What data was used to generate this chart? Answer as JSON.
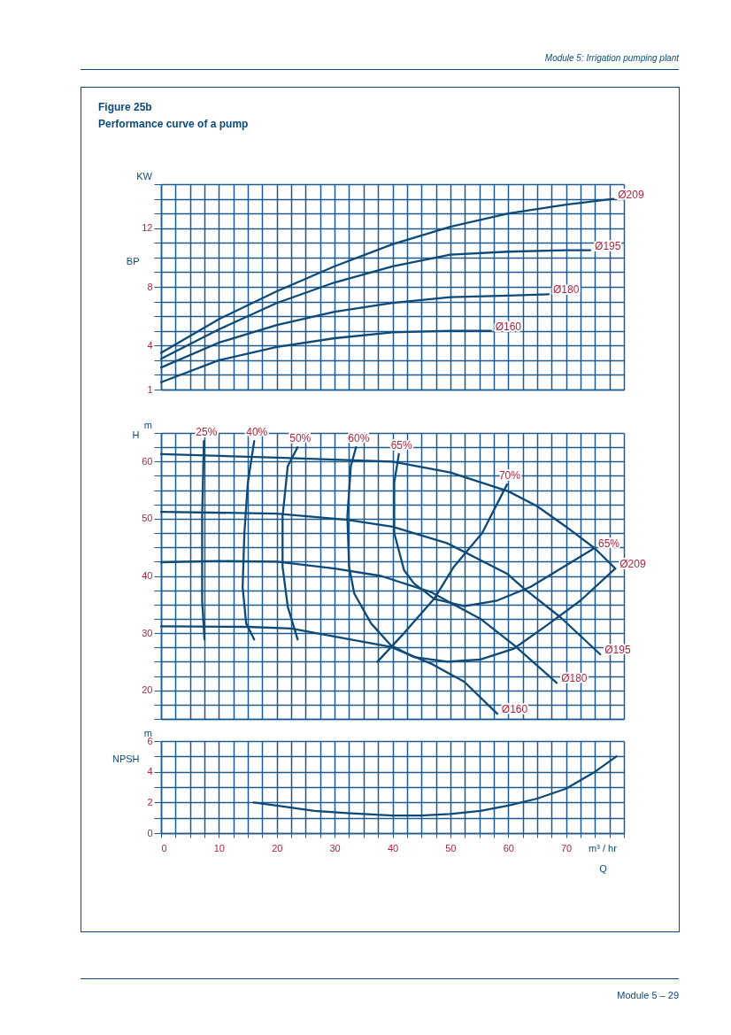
{
  "chart_data": [
    {
      "type": "line",
      "title": "Figure 25b",
      "subtitle": "Performance curve of a pump",
      "ylabel": "BP",
      "annotations": [
        "KW",
        "Module 5: Irrigation pumping plant",
        "Module 5 – 29"
      ],
      "xlim": [
        0,
        80
      ],
      "ylim": [
        1,
        15
      ],
      "grid": true,
      "tick_labels": "y",
      "xticks": [
        0,
        {
          "value": 2.5,
          "label": null
        },
        {
          "value": 5,
          "label": null
        },
        {
          "value": 7.5,
          "label": null
        },
        10,
        {
          "value": 12.5,
          "label": null
        },
        {
          "value": 15,
          "label": null
        },
        {
          "value": 17.5,
          "label": null
        },
        20,
        {
          "value": 22.5,
          "label": null
        },
        {
          "value": 25,
          "label": null
        },
        {
          "value": 27.5,
          "label": null
        },
        30,
        {
          "value": 32.5,
          "label": null
        },
        {
          "value": 35,
          "label": null
        },
        {
          "value": 37.5,
          "label": null
        },
        40,
        {
          "value": 42.5,
          "label": null
        },
        {
          "value": 45,
          "label": null
        },
        {
          "value": 47.5,
          "label": null
        },
        50,
        {
          "value": 52.5,
          "label": null
        },
        {
          "value": 55,
          "label": null
        },
        {
          "value": 57.5,
          "label": null
        },
        60,
        {
          "value": 62.5,
          "label": null
        },
        {
          "value": 65,
          "label": null
        },
        {
          "value": 67.5,
          "label": null
        },
        70,
        {
          "value": 72.5,
          "label": null
        },
        {
          "value": 75,
          "label": null
        },
        {
          "value": 77.5,
          "label": null
        },
        {
          "value": 80,
          "label": null
        }
      ],
      "yticks": [
        1,
        {
          "value": 2,
          "label": null
        },
        {
          "value": 3,
          "label": null
        },
        4,
        {
          "value": 5,
          "label": null
        },
        {
          "value": 6,
          "label": null
        },
        {
          "value": 7,
          "label": null
        },
        8,
        {
          "value": 9,
          "label": null
        },
        {
          "value": 10,
          "label": null
        },
        {
          "value": 11,
          "label": null
        },
        12,
        {
          "value": 13,
          "label": null
        },
        {
          "value": 14,
          "label": null
        },
        {
          "value": 15,
          "label": null
        }
      ],
      "series": [
        {
          "name": "Ø209",
          "color": "#0d4a78",
          "x": [
            0,
            10,
            20,
            30,
            40,
            50,
            60,
            70,
            78.2
          ],
          "values": [
            3.5,
            5.8,
            7.7,
            9.4,
            10.9,
            12.1,
            13.0,
            13.6,
            14.0
          ]
        },
        {
          "name": "Ø195",
          "color": "#0d4a78",
          "x": [
            0,
            10,
            20,
            30,
            40,
            50,
            60,
            70,
            74.2
          ],
          "values": [
            3.1,
            5.1,
            6.9,
            8.3,
            9.4,
            10.2,
            10.4,
            10.5,
            10.5
          ]
        },
        {
          "name": "Ø180",
          "color": "#0d4a78",
          "x": [
            0,
            10,
            20,
            30,
            40,
            50,
            60,
            67
          ],
          "values": [
            2.5,
            4.2,
            5.4,
            6.3,
            6.9,
            7.3,
            7.4,
            7.5
          ]
        },
        {
          "name": "Ø160",
          "color": "#0d4a78",
          "x": [
            0,
            10,
            20,
            30,
            40,
            50,
            57
          ],
          "values": [
            1.5,
            3.0,
            3.9,
            4.5,
            4.9,
            5.0,
            5.0
          ]
        }
      ]
    },
    {
      "type": "line",
      "ylabel": "H",
      "annotations": [
        "m",
        {
          "text": "65%",
          "x": 74.8,
          "y": 44.8
        }
      ],
      "xlim": [
        0,
        80
      ],
      "ylim": [
        15,
        65
      ],
      "grid": true,
      "tick_labels": "y",
      "xticks": [
        0,
        {
          "value": 2.5,
          "label": null
        },
        {
          "value": 5,
          "label": null
        },
        {
          "value": 7.5,
          "label": null
        },
        10,
        {
          "value": 12.5,
          "label": null
        },
        {
          "value": 15,
          "label": null
        },
        {
          "value": 17.5,
          "label": null
        },
        20,
        {
          "value": 22.5,
          "label": null
        },
        {
          "value": 25,
          "label": null
        },
        {
          "value": 27.5,
          "label": null
        },
        30,
        {
          "value": 32.5,
          "label": null
        },
        {
          "value": 35,
          "label": null
        },
        {
          "value": 37.5,
          "label": null
        },
        40,
        {
          "value": 42.5,
          "label": null
        },
        {
          "value": 45,
          "label": null
        },
        {
          "value": 47.5,
          "label": null
        },
        50,
        {
          "value": 52.5,
          "label": null
        },
        {
          "value": 55,
          "label": null
        },
        {
          "value": 57.5,
          "label": null
        },
        60,
        {
          "value": 62.5,
          "label": null
        },
        {
          "value": 65,
          "label": null
        },
        {
          "value": 67.5,
          "label": null
        },
        70,
        {
          "value": 72.5,
          "label": null
        },
        {
          "value": 75,
          "label": null
        },
        {
          "value": 77.5,
          "label": null
        },
        {
          "value": 80,
          "label": null
        }
      ],
      "yticks": [
        {
          "value": 15,
          "label": null
        },
        {
          "value": 17.5,
          "label": null
        },
        20,
        {
          "value": 22.5,
          "label": null
        },
        {
          "value": 25,
          "label": null
        },
        {
          "value": 27.5,
          "label": null
        },
        30,
        {
          "value": 32.5,
          "label": null
        },
        {
          "value": 35,
          "label": null
        },
        {
          "value": 37.5,
          "label": null
        },
        40,
        {
          "value": 42.5,
          "label": null
        },
        {
          "value": 45,
          "label": null
        },
        {
          "value": 47.5,
          "label": null
        },
        50,
        {
          "value": 52.5,
          "label": null
        },
        {
          "value": 55,
          "label": null
        },
        {
          "value": 57.5,
          "label": null
        },
        60,
        {
          "value": 62.5,
          "label": null
        },
        {
          "value": 65,
          "label": null
        }
      ],
      "series": [
        {
          "name": "25%",
          "color": "#0d4a78",
          "x": [
            7.5,
            7.1,
            7.1,
            7.4
          ],
          "values": [
            28.9,
            35.7,
            50.4,
            63.6
          ]
        },
        {
          "name": "40%",
          "color": "#0d4a78",
          "x": [
            16.1,
            14.7,
            14.1,
            14.4,
            15,
            16.1
          ],
          "values": [
            28.9,
            31.7,
            38.1,
            47.5,
            56.3,
            63.6
          ]
        },
        {
          "name": "50%",
          "color": "#0d4a78",
          "x": [
            23.6,
            21.9,
            21,
            21,
            21.9,
            23.6
          ],
          "values": [
            28.9,
            34.6,
            41.6,
            50.4,
            59.2,
            62.5
          ]
        },
        {
          "name": "60%",
          "color": "#0d4a78",
          "x": [
            78.5,
            72.5,
            66.7,
            61,
            55.2,
            49.5,
            43.7,
            39.7,
            36.3,
            33.4,
            32.5,
            32.2,
            32.8,
            33.7
          ],
          "values": [
            41.3,
            35.7,
            31.4,
            27.3,
            25.4,
            25,
            25.8,
            27.9,
            31.7,
            36.9,
            41.6,
            50.4,
            59.2,
            62.5
          ]
        },
        {
          "name": "65%",
          "color": "#0d4a78",
          "x": [
            74.8,
            63.9,
            58.1,
            52.4,
            47.2,
            43.7,
            42,
            40.3,
            40.3,
            41.1
          ],
          "values": [
            44.8,
            38.1,
            35.7,
            34.7,
            36,
            38.7,
            41,
            47.5,
            56.3,
            61.3
          ]
        },
        {
          "name": "70%",
          "color": "#0d4a78",
          "x": [
            37.4,
            42,
            47.2,
            50.6,
            55.5,
            59.8
          ],
          "values": [
            25,
            30,
            36,
            41.6,
            47.5,
            56
          ]
        },
        {
          "name": "Ø209",
          "color": "#0d4a78",
          "x": [
            0,
            20,
            40,
            50,
            60,
            65,
            70,
            75,
            78.5
          ],
          "values": [
            61.3,
            60.7,
            60,
            58.1,
            54.8,
            52.2,
            48.6,
            44.8,
            41.3
          ]
        },
        {
          "name": "Ø195",
          "color": "#0d4a78",
          "x": [
            0,
            20,
            32.2,
            40,
            49.5,
            59.8,
            62.7,
            69,
            75.9
          ],
          "values": [
            51.2,
            50.9,
            49.8,
            48.6,
            45.7,
            40.4,
            37.8,
            32.8,
            26.3
          ]
        },
        {
          "name": "Ø180",
          "color": "#0d4a78",
          "x": [
            0,
            10,
            20,
            30,
            38,
            46.6,
            55.2,
            61,
            68.4
          ],
          "values": [
            42.4,
            42.6,
            42.5,
            41.3,
            40,
            37.2,
            32.5,
            27.9,
            21.3
          ]
        },
        {
          "name": "Ø160",
          "color": "#0d4a78",
          "x": [
            0,
            15,
            22.5,
            32.2,
            39.7,
            46.6,
            52.4,
            58.1
          ],
          "values": [
            31.2,
            31.1,
            30.8,
            29,
            27.6,
            24.7,
            21.5,
            15.9
          ]
        }
      ]
    },
    {
      "type": "line",
      "ylabel": "NPSH",
      "xlabel": "Q",
      "annotations": [
        "m",
        "m³ / hr"
      ],
      "xlim": [
        0,
        80
      ],
      "ylim": [
        0,
        6
      ],
      "grid": true,
      "xticks": [
        0,
        {
          "value": 2.5,
          "label": null
        },
        {
          "value": 5,
          "label": null
        },
        {
          "value": 7.5,
          "label": null
        },
        10,
        {
          "value": 12.5,
          "label": null
        },
        {
          "value": 15,
          "label": null
        },
        {
          "value": 17.5,
          "label": null
        },
        20,
        {
          "value": 22.5,
          "label": null
        },
        {
          "value": 25,
          "label": null
        },
        {
          "value": 27.5,
          "label": null
        },
        30,
        {
          "value": 32.5,
          "label": null
        },
        {
          "value": 35,
          "label": null
        },
        {
          "value": 37.5,
          "label": null
        },
        40,
        {
          "value": 42.5,
          "label": null
        },
        {
          "value": 45,
          "label": null
        },
        {
          "value": 47.5,
          "label": null
        },
        50,
        {
          "value": 52.5,
          "label": null
        },
        {
          "value": 55,
          "label": null
        },
        {
          "value": 57.5,
          "label": null
        },
        60,
        {
          "value": 62.5,
          "label": null
        },
        {
          "value": 65,
          "label": null
        },
        {
          "value": 67.5,
          "label": null
        },
        70,
        {
          "value": 72.5,
          "label": null
        },
        {
          "value": 75,
          "label": null
        },
        {
          "value": 77.5,
          "label": null
        },
        {
          "value": 80,
          "label": null
        }
      ],
      "yticks": [
        0,
        {
          "value": 1,
          "label": null
        },
        2,
        {
          "value": 3,
          "label": null
        },
        4,
        {
          "value": 5,
          "label": null
        },
        6
      ],
      "series": [
        {
          "color": "#0d4a78",
          "x": [
            16,
            20,
            26.5,
            32.2,
            40,
            44.9,
            50,
            55.2,
            60,
            65,
            70,
            75,
            78.7
          ],
          "values": [
            2.0,
            1.8,
            1.45,
            1.3,
            1.15,
            1.15,
            1.25,
            1.45,
            1.8,
            2.25,
            2.9,
            4.0,
            5.0
          ]
        }
      ]
    }
  ]
}
